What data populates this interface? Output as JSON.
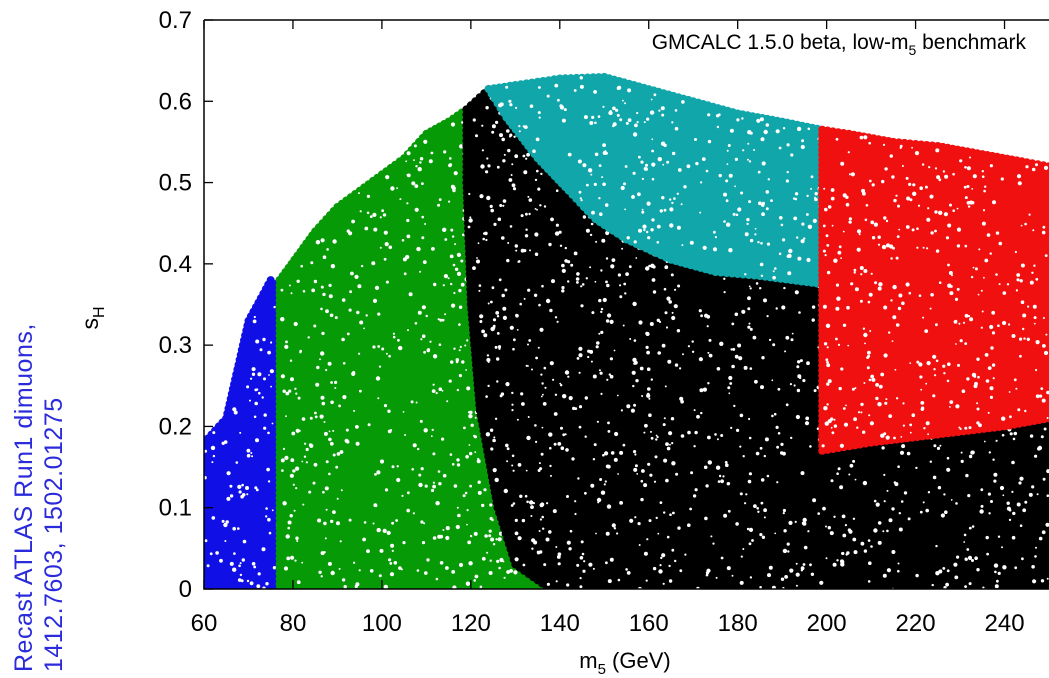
{
  "side_label": {
    "line1": "Recast ATLAS Run1 dimuons,",
    "line2": "1412.7603, 1502.01275"
  },
  "chart_data": {
    "type": "scatter",
    "annotation": {
      "text": "GMCALC 1.5.0 beta, low-m",
      "sub": "5",
      "tail": " benchmark"
    },
    "xlabel": {
      "text": "m",
      "sub": "5",
      "tail": " (GeV)"
    },
    "ylabel": {
      "text": "s",
      "sub": "H"
    },
    "xlim": [
      60,
      250
    ],
    "ylim": [
      0,
      0.7
    ],
    "x_ticks": [
      60,
      80,
      100,
      120,
      140,
      160,
      180,
      200,
      220,
      240
    ],
    "y_ticks": [
      0,
      0.1,
      0.2,
      0.3,
      0.4,
      0.5,
      0.6,
      0.7
    ],
    "regions": [
      {
        "color": "#1010e6",
        "outline": [
          [
            60,
            0
          ],
          [
            60,
            0.18
          ],
          [
            65,
            0.21
          ],
          [
            70,
            0.33
          ],
          [
            75,
            0.38
          ],
          [
            77,
            0.38
          ],
          [
            77,
            0
          ],
          [
            60,
            0
          ]
        ]
      },
      {
        "color": "#079a07",
        "outline": [
          [
            77,
            0
          ],
          [
            77,
            0.38
          ],
          [
            81,
            0.41
          ],
          [
            85,
            0.44
          ],
          [
            90,
            0.47
          ],
          [
            95,
            0.49
          ],
          [
            100,
            0.51
          ],
          [
            105,
            0.53
          ],
          [
            110,
            0.56
          ],
          [
            115,
            0.575
          ],
          [
            119,
            0.59
          ],
          [
            119,
            0.5
          ],
          [
            120,
            0.35
          ],
          [
            122,
            0.22
          ],
          [
            126,
            0.1
          ],
          [
            130,
            0.03
          ],
          [
            137,
            0.003
          ],
          [
            150,
            0.0
          ],
          [
            165,
            0.0
          ],
          [
            165,
            0
          ],
          [
            77,
            0
          ]
        ]
      },
      {
        "color": "#000000",
        "outline": [
          [
            119,
            0.5
          ],
          [
            119,
            0.59
          ],
          [
            121,
            0.6
          ],
          [
            124,
            0.615
          ],
          [
            128,
            0.58
          ],
          [
            135,
            0.53
          ],
          [
            142,
            0.49
          ],
          [
            148,
            0.455
          ],
          [
            155,
            0.43
          ],
          [
            165,
            0.405
          ],
          [
            175,
            0.39
          ],
          [
            185,
            0.385
          ],
          [
            199,
            0.375
          ],
          [
            199,
            0.17
          ],
          [
            210,
            0.18
          ],
          [
            225,
            0.19
          ],
          [
            240,
            0.2
          ],
          [
            250,
            0.21
          ],
          [
            250,
            0
          ],
          [
            165,
            0
          ],
          [
            150,
            0.0
          ],
          [
            137,
            0.003
          ],
          [
            130,
            0.03
          ],
          [
            126,
            0.1
          ],
          [
            122,
            0.22
          ],
          [
            120,
            0.35
          ],
          [
            119,
            0.5
          ]
        ]
      },
      {
        "color": "#10a6aa",
        "outline": [
          [
            124,
            0.615
          ],
          [
            130,
            0.62
          ],
          [
            140,
            0.628
          ],
          [
            150,
            0.63
          ],
          [
            160,
            0.615
          ],
          [
            170,
            0.6
          ],
          [
            180,
            0.585
          ],
          [
            190,
            0.575
          ],
          [
            199,
            0.565
          ],
          [
            199,
            0.375
          ],
          [
            185,
            0.385
          ],
          [
            175,
            0.39
          ],
          [
            165,
            0.405
          ],
          [
            155,
            0.43
          ],
          [
            148,
            0.455
          ],
          [
            142,
            0.49
          ],
          [
            135,
            0.53
          ],
          [
            128,
            0.58
          ],
          [
            124,
            0.615
          ]
        ]
      },
      {
        "color": "#f01010",
        "outline": [
          [
            199,
            0.17
          ],
          [
            199,
            0.565
          ],
          [
            205,
            0.56
          ],
          [
            215,
            0.55
          ],
          [
            225,
            0.545
          ],
          [
            235,
            0.535
          ],
          [
            245,
            0.525
          ],
          [
            250,
            0.52
          ],
          [
            250,
            0.21
          ],
          [
            240,
            0.2
          ],
          [
            225,
            0.19
          ],
          [
            210,
            0.18
          ],
          [
            199,
            0.17
          ]
        ]
      }
    ]
  }
}
